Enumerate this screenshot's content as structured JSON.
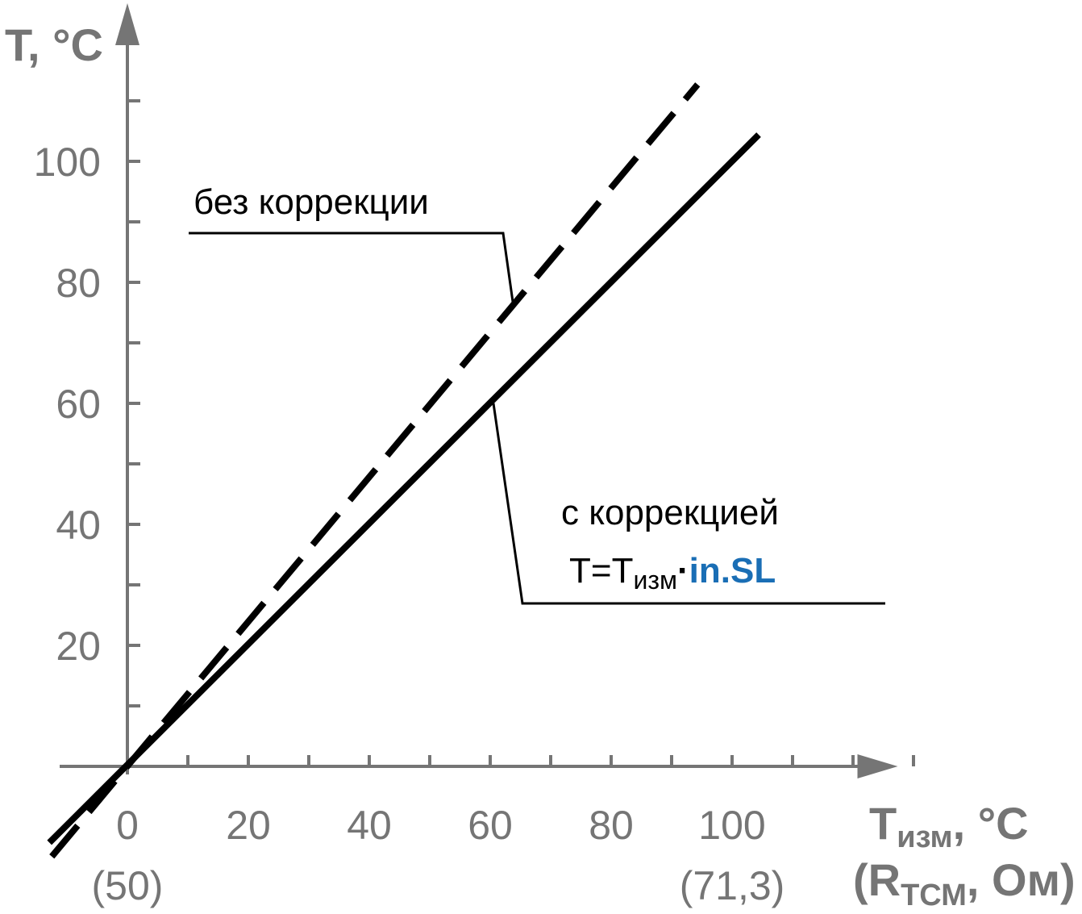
{
  "chart_data": {
    "type": "line",
    "colors": {
      "axis": "#757575",
      "lines": "#000000",
      "accent": "#1a6eb5"
    },
    "x_axis": {
      "label_main": "T",
      "label_sub": "изм",
      "label_unit": ", °C",
      "label2_open": "(R",
      "label2_sub": "ТСМ",
      "label2_rest": ", Ом)",
      "ticks": [
        0,
        20,
        40,
        60,
        80,
        100
      ],
      "minor_step": 10,
      "range": [
        -20,
        125
      ],
      "secondary_labels": [
        {
          "x": 0,
          "text": "(50)"
        },
        {
          "x": 100,
          "text": "(71,3)"
        }
      ]
    },
    "y_axis": {
      "label": "T, °C",
      "ticks": [
        20,
        40,
        60,
        80,
        100
      ],
      "minor_step": 10,
      "range": [
        -15,
        125
      ]
    },
    "series": [
      {
        "name": "без коррекции",
        "style": "dashed",
        "x": [
          -12.5,
          94.3
        ],
        "y": [
          -14.9,
          112.7
        ]
      },
      {
        "name": "с коррекцией",
        "style": "solid",
        "x": [
          -12.9,
          104.4
        ],
        "y": [
          -12.6,
          104.4
        ]
      }
    ],
    "annotations": {
      "no_correction": "без коррекции",
      "with_correction": "с коррекцией",
      "formula_prefix": "T=T",
      "formula_sub": "изм",
      "formula_dot": "·",
      "formula_param": "in.SL"
    }
  }
}
